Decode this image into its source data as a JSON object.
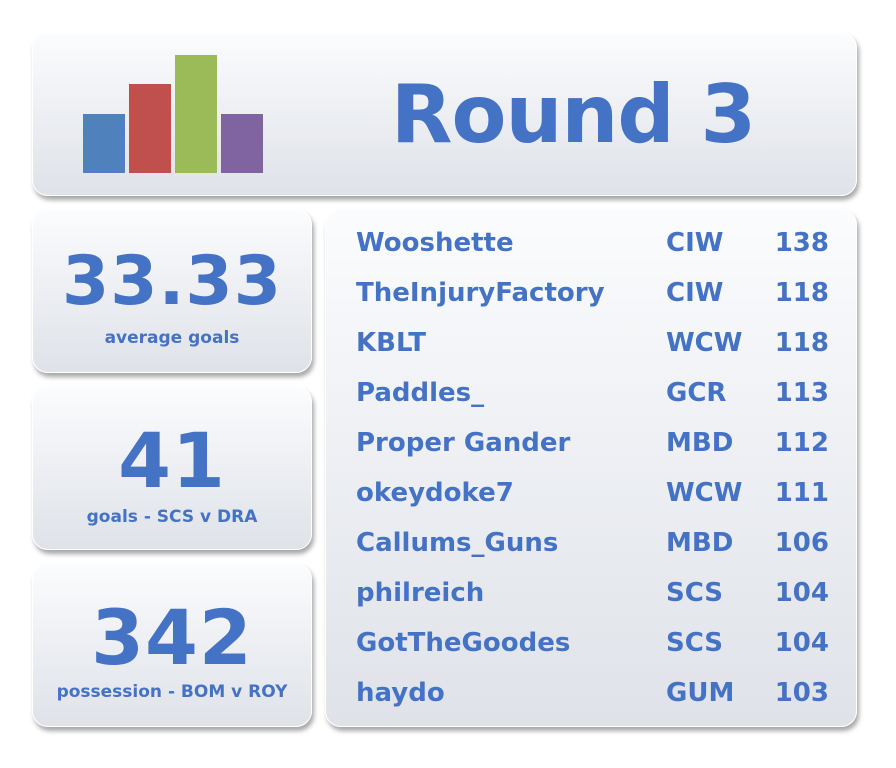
{
  "header": {
    "title": "Round 3",
    "logo_icon": "bar-chart-icon",
    "logo_colors": [
      "#4f81bd",
      "#c0504d",
      "#9bbb59",
      "#8064a2"
    ],
    "logo_levels": [
      0.5,
      0.75,
      1.0,
      0.5
    ]
  },
  "stats": [
    {
      "value": "33.33",
      "label": "average goals"
    },
    {
      "value": "41",
      "label": "goals - SCS v DRA"
    },
    {
      "value": "342",
      "label": "possession - BOM v ROY"
    }
  ],
  "leaderboard": [
    {
      "name": "Wooshette",
      "team": "CIW",
      "score": "138"
    },
    {
      "name": "TheInjuryFactory",
      "team": "CIW",
      "score": "118"
    },
    {
      "name": "KBLT",
      "team": "WCW",
      "score": "118"
    },
    {
      "name": "Paddles_",
      "team": "GCR",
      "score": "113"
    },
    {
      "name": "Proper Gander",
      "team": "MBD",
      "score": "112"
    },
    {
      "name": "okeydoke7",
      "team": "WCW",
      "score": "111"
    },
    {
      "name": "Callums_Guns",
      "team": "MBD",
      "score": "106"
    },
    {
      "name": "philreich",
      "team": "SCS",
      "score": "104"
    },
    {
      "name": "GotTheGoodes",
      "team": "SCS",
      "score": "104"
    },
    {
      "name": "haydo",
      "team": "GUM",
      "score": "103"
    }
  ],
  "colors": {
    "text": "#4472c4"
  }
}
